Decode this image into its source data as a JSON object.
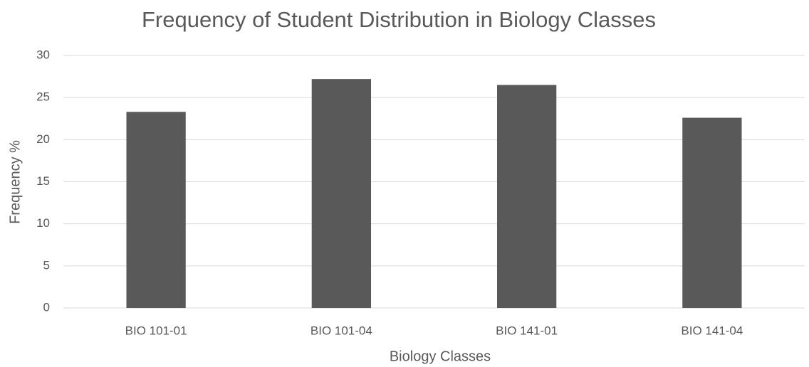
{
  "chart_data": {
    "type": "bar",
    "title": "Frequency of Student Distribution in Biology Classes",
    "x_label": "Biology Classes",
    "y_label": "Frequency %",
    "categories": [
      "BIO 101-01",
      "BIO 101-04",
      "BIO 141-01",
      "BIO 141-04"
    ],
    "values": [
      23.3,
      27.2,
      26.5,
      22.6
    ],
    "color": "#595959",
    "ylim": [
      0,
      30
    ],
    "yticks": [
      0,
      5,
      10,
      15,
      20,
      25,
      30
    ],
    "grid": true
  }
}
